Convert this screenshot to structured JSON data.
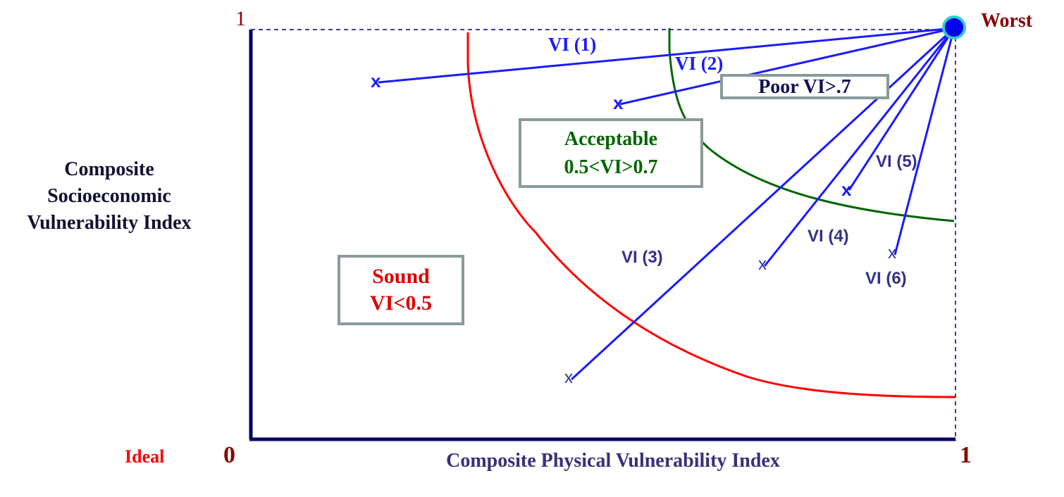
{
  "axes": {
    "y_label": "Composite Socioeconomic Vulnerability Index",
    "x_label": "Composite Physical Vulnerability Index",
    "y_tick_max": "1",
    "origin_tick": "0",
    "x_tick_max": "1"
  },
  "points": {
    "ideal_label": "Ideal",
    "worst_label": "Worst"
  },
  "zones": {
    "sound": {
      "line1": "Sound",
      "line2": "VI<0.5"
    },
    "acceptable": {
      "line1": "Acceptable",
      "line2": "0.5<VI>0.7"
    },
    "poor": {
      "label": "Poor VI>.7"
    }
  },
  "vectors": [
    {
      "label": "VI (1)",
      "marker": "x"
    },
    {
      "label": "VI (2)",
      "marker": "x"
    },
    {
      "label": "VI (3)",
      "marker": "x"
    },
    {
      "label": "VI (4)",
      "marker": "x"
    },
    {
      "label": "VI (5)",
      "marker": "x"
    },
    {
      "label": "VI (6)",
      "marker": "x"
    }
  ],
  "colors": {
    "axis": "#000066",
    "vector": "#1a1aff",
    "vector_label": "#33338a",
    "sound_curve": "#ff0000",
    "acceptable_curve": "#006600",
    "worst_marker": "#0000ee",
    "worst_ring": "#33cccc",
    "ideal": "#ff0000",
    "worst": "#8b0000"
  }
}
